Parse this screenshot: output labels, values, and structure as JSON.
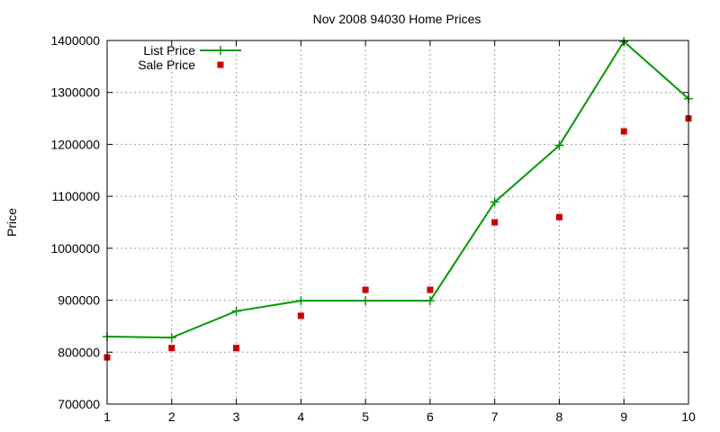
{
  "chart_data": {
    "type": "line",
    "title": "Nov 2008 94030 Home Prices",
    "xlabel": "",
    "ylabel": "Price",
    "xlim": [
      1,
      10
    ],
    "ylim": [
      700000,
      1400000
    ],
    "x_ticks": [
      "1",
      "2",
      "3",
      "4",
      "5",
      "6",
      "7",
      "8",
      "9",
      "10"
    ],
    "y_ticks": [
      "700000",
      "800000",
      "900000",
      "1000000",
      "1100000",
      "1200000",
      "1300000",
      "1400000"
    ],
    "grid": true,
    "legend_position": "top-left",
    "x": [
      1,
      2,
      3,
      4,
      5,
      6,
      7,
      8,
      9,
      10
    ],
    "series": [
      {
        "name": "List Price",
        "style": "line+cross",
        "color": "#009900",
        "values": [
          830000,
          828000,
          879000,
          899000,
          899000,
          899000,
          1089000,
          1198000,
          1398000,
          1288000
        ]
      },
      {
        "name": "Sale Price",
        "style": "square",
        "color": "#cc0000",
        "values": [
          790000,
          808000,
          808000,
          870000,
          920000,
          920000,
          1050000,
          1060000,
          1225000,
          1250000
        ]
      }
    ]
  }
}
